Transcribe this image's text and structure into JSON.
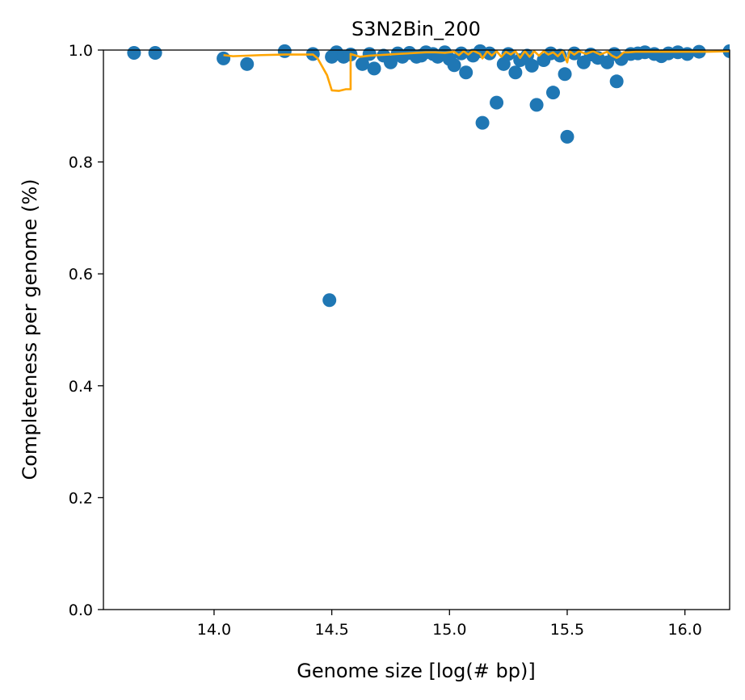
{
  "chart_data": {
    "type": "scatter",
    "title": "S3N2Bin_200",
    "xlabel": "Genome size [log(# bp)]",
    "ylabel": "Completeness per genome (%)",
    "xlim": [
      13.53,
      16.19
    ],
    "ylim": [
      0.0,
      1.0
    ],
    "xticks": [
      "14.0",
      "14.5",
      "15.0",
      "15.5",
      "16.0"
    ],
    "xtick_values": [
      14.0,
      14.5,
      15.0,
      15.5,
      16.0
    ],
    "yticks": [
      "0.0",
      "0.2",
      "0.4",
      "0.6",
      "0.8",
      "1.0"
    ],
    "ytick_values": [
      0.0,
      0.2,
      0.4,
      0.6,
      0.8,
      1.0
    ],
    "grid": false,
    "colors": {
      "points": "#1f77b4",
      "line": "#ffa500"
    },
    "points": {
      "x": [
        13.66,
        13.75,
        14.04,
        14.14,
        14.3,
        14.42,
        14.49,
        14.5,
        14.52,
        14.55,
        14.58,
        14.63,
        14.66,
        14.68,
        14.72,
        14.75,
        14.78,
        14.8,
        14.83,
        14.86,
        14.88,
        14.9,
        14.93,
        14.95,
        14.98,
        15.0,
        15.02,
        15.05,
        15.07,
        15.1,
        15.13,
        15.14,
        15.17,
        15.2,
        15.23,
        15.25,
        15.28,
        15.3,
        15.33,
        15.35,
        15.37,
        15.4,
        15.43,
        15.44,
        15.47,
        15.49,
        15.5,
        15.53,
        15.57,
        15.6,
        15.63,
        15.67,
        15.7,
        15.71,
        15.73,
        15.77,
        15.8,
        15.83,
        15.87,
        15.9,
        15.93,
        15.97,
        16.01,
        16.06,
        16.19
      ],
      "y": [
        0.995,
        0.995,
        0.985,
        0.975,
        0.998,
        0.993,
        0.553,
        0.988,
        0.996,
        0.988,
        0.992,
        0.975,
        0.993,
        0.967,
        0.99,
        0.978,
        0.994,
        0.988,
        0.995,
        0.988,
        0.99,
        0.996,
        0.993,
        0.988,
        0.996,
        0.984,
        0.973,
        0.994,
        0.96,
        0.99,
        0.998,
        0.87,
        0.994,
        0.906,
        0.975,
        0.993,
        0.96,
        0.982,
        0.99,
        0.972,
        0.902,
        0.982,
        0.994,
        0.924,
        0.99,
        0.957,
        0.845,
        0.994,
        0.978,
        0.992,
        0.986,
        0.978,
        0.993,
        0.944,
        0.984,
        0.993,
        0.994,
        0.996,
        0.993,
        0.989,
        0.994,
        0.996,
        0.993,
        0.997,
        0.998
      ]
    },
    "line": {
      "x": [
        14.04,
        14.08,
        14.2,
        14.3,
        14.42,
        14.44,
        14.48,
        14.5,
        14.53,
        14.56,
        14.58,
        14.58,
        14.62,
        14.66,
        14.7,
        14.74,
        14.78,
        14.82,
        14.86,
        14.9,
        14.94,
        14.98,
        15.02,
        15.04,
        15.06,
        15.08,
        15.1,
        15.13,
        15.14,
        15.16,
        15.18,
        15.2,
        15.22,
        15.24,
        15.26,
        15.28,
        15.3,
        15.32,
        15.34,
        15.36,
        15.38,
        15.4,
        15.42,
        15.44,
        15.46,
        15.48,
        15.5,
        15.51,
        15.53,
        15.55,
        15.58,
        15.61,
        15.64,
        15.67,
        15.69,
        15.7,
        15.71,
        15.72,
        15.74,
        15.76,
        15.79,
        15.82,
        15.86,
        15.9,
        15.95,
        16.0,
        16.05,
        16.1,
        16.19
      ],
      "y": [
        0.991,
        0.989,
        0.991,
        0.992,
        0.992,
        0.985,
        0.955,
        0.928,
        0.927,
        0.93,
        0.93,
        0.993,
        0.988,
        0.99,
        0.991,
        0.992,
        0.993,
        0.994,
        0.995,
        0.996,
        0.996,
        0.995,
        0.997,
        0.991,
        0.998,
        0.992,
        0.999,
        0.993,
        0.985,
        0.998,
        0.99,
        0.998,
        0.988,
        0.997,
        0.992,
        0.998,
        0.986,
        0.998,
        0.988,
        0.998,
        0.99,
        0.998,
        0.992,
        0.996,
        0.989,
        0.998,
        0.978,
        0.998,
        0.992,
        0.998,
        0.993,
        0.998,
        0.992,
        0.997,
        0.99,
        0.988,
        0.986,
        0.988,
        0.996,
        0.996,
        0.997,
        0.997,
        0.997,
        0.997,
        0.997,
        0.997,
        0.997,
        0.997,
        0.998
      ]
    }
  }
}
